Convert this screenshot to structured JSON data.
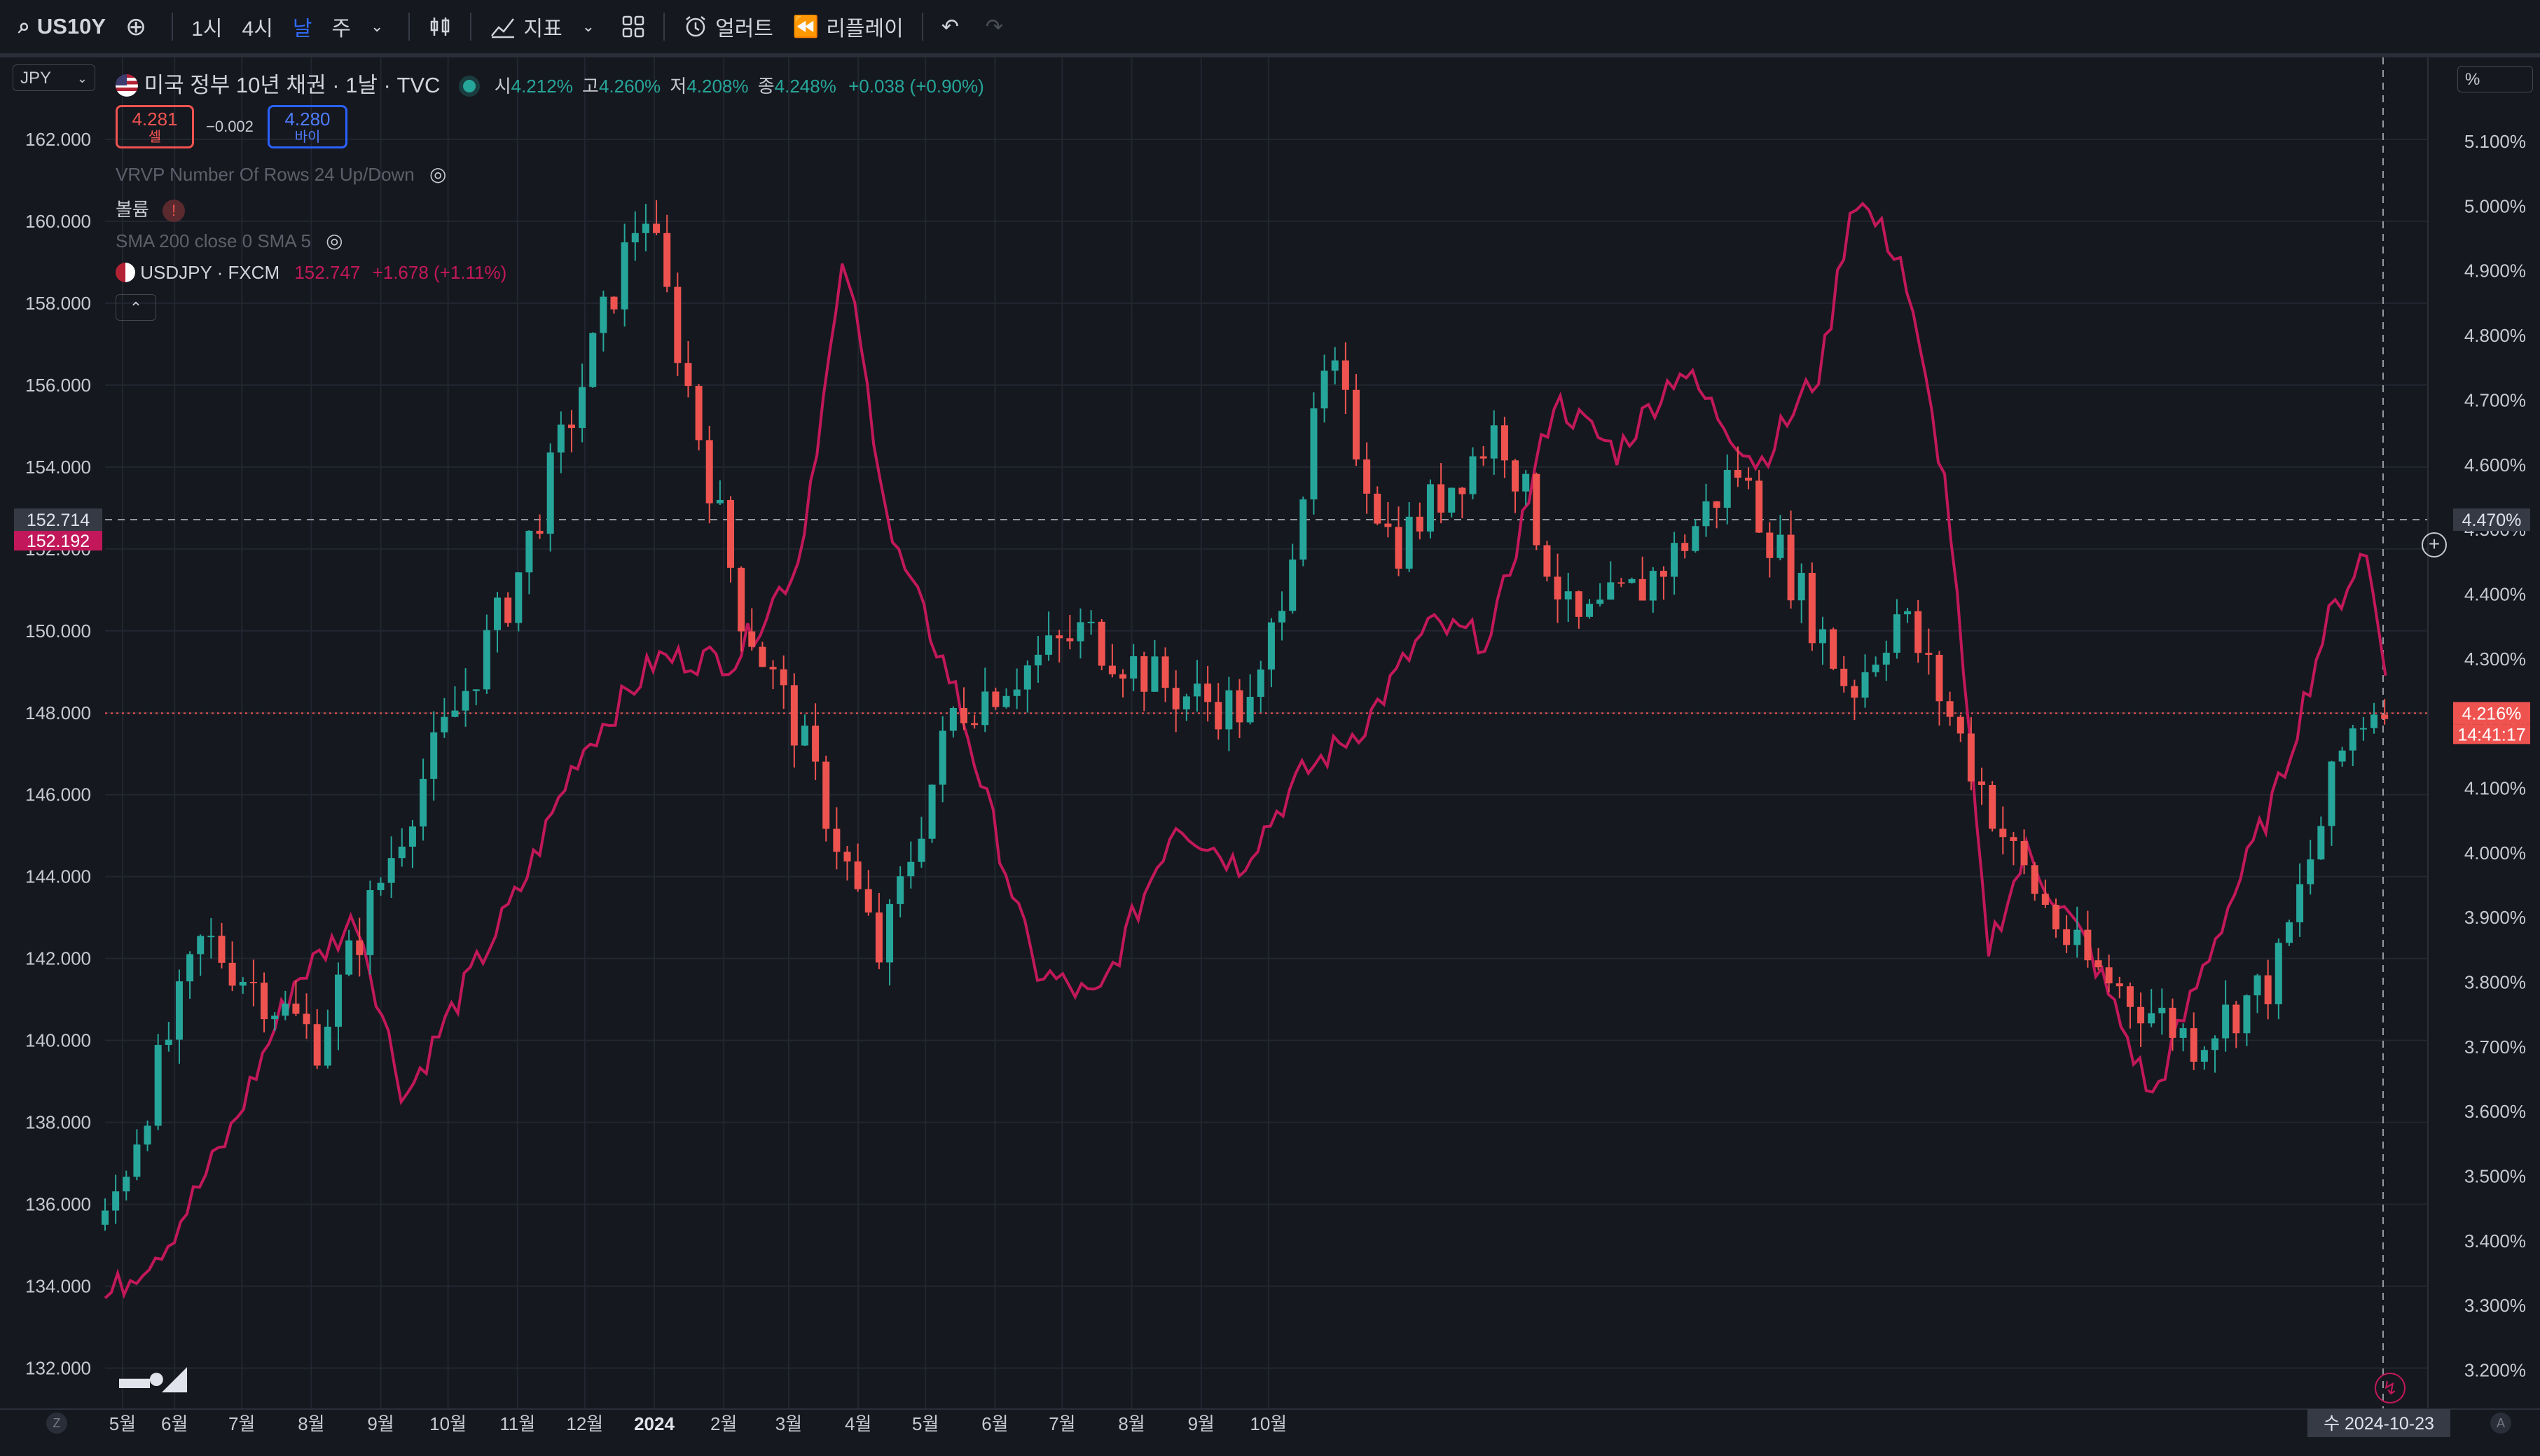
{
  "toolbar": {
    "symbol": "US10Y",
    "intervals": [
      "1시",
      "4시",
      "날",
      "주"
    ],
    "active_interval": "날",
    "indicators_label": "지표",
    "alert_label": "얼러트",
    "replay_label": "리플레이",
    "icons": [
      "search-icon",
      "add-symbol-icon",
      "chevron-down-icon",
      "candles-icon",
      "indicators-icon",
      "layout-icon",
      "alarm-icon",
      "replay-icon",
      "undo-icon",
      "redo-icon"
    ]
  },
  "currency_select": "JPY",
  "pct_select": "%",
  "legend": {
    "title": "미국 정부 10년 채권 · 1날 · TVC",
    "o_label": "시",
    "o": "4.212%",
    "h_label": "고",
    "h": "4.260%",
    "l_label": "저",
    "l": "4.208%",
    "c_label": "종",
    "c": "4.248%",
    "change": "+0.038 (+0.90%)",
    "sell_price": "4.281",
    "sell_label": "셀",
    "spread": "−0.002",
    "buy_price": "4.280",
    "buy_label": "바이",
    "vrvp": "VRVP Number Of Rows 24 Up/Down",
    "volume": "볼륨",
    "sma": "SMA 200 close 0 SMA 5",
    "compare_name": "USDJPY · FXCM",
    "compare_price": "152.747",
    "compare_change": "+1.678 (+1.11%)"
  },
  "colors": {
    "background": "#16181f",
    "up": "#26a69a",
    "down": "#ef5350",
    "compare": "#c2185b",
    "accent": "#2962ff"
  },
  "chart_data": {
    "type": "candlestick + line",
    "series": [
      {
        "name": "USDJPY · FXCM",
        "type": "candlestick",
        "axis": "left",
        "values": [
          {
            "month": "2023-05",
            "open": 136.5,
            "close": 137.8
          },
          {
            "month": "2023-06",
            "open": 137.8,
            "close": 143.5
          },
          {
            "month": "2023-07",
            "open": 143.5,
            "close": 142.3
          },
          {
            "month": "2023-08",
            "open": 142.3,
            "close": 145.5
          },
          {
            "month": "2023-09",
            "open": 145.5,
            "close": 149.3
          },
          {
            "month": "2023-10",
            "open": 149.3,
            "close": 151.5
          },
          {
            "month": "2023-11",
            "open": 151.5,
            "close": 148.2
          },
          {
            "month": "2023-12",
            "open": 148.2,
            "close": 141.0
          },
          {
            "month": "2024-01",
            "open": 141.0,
            "close": 147.2
          },
          {
            "month": "2024-02",
            "open": 147.2,
            "close": 150.0
          },
          {
            "month": "2024-03",
            "open": 150.0,
            "close": 151.3
          },
          {
            "month": "2024-04",
            "open": 151.3,
            "close": 157.7
          },
          {
            "month": "2024-05",
            "open": 157.7,
            "close": 157.3
          },
          {
            "month": "2024-06",
            "open": 157.3,
            "close": 160.9
          },
          {
            "month": "2024-07",
            "open": 160.9,
            "close": 150.0
          },
          {
            "month": "2024-08",
            "open": 150.0,
            "close": 146.2
          },
          {
            "month": "2024-09",
            "open": 146.2,
            "close": 143.6
          },
          {
            "month": "2024-10",
            "open": 143.6,
            "close": 152.7
          }
        ],
        "approx_path": [
          [
            0,
            135.5
          ],
          [
            60,
            142.5
          ],
          [
            130,
            140
          ],
          [
            190,
            146
          ],
          [
            250,
            151
          ],
          [
            330,
            160.5
          ],
          [
            390,
            150.5
          ],
          [
            425,
            147.5
          ],
          [
            475,
            142
          ],
          [
            520,
            148
          ],
          [
            600,
            150
          ],
          [
            655,
            148.5
          ],
          [
            705,
            148
          ],
          [
            750,
            156.5
          ],
          [
            790,
            152
          ],
          [
            855,
            155
          ],
          [
            900,
            150
          ],
          [
            940,
            151
          ],
          [
            965,
            152
          ],
          [
            1000,
            154
          ],
          [
            1070,
            148.5
          ],
          [
            1100,
            150.5
          ],
          [
            1130,
            148
          ],
          [
            1170,
            144.5
          ],
          [
            1210,
            142
          ],
          [
            1280,
            140
          ],
          [
            1330,
            141.5
          ],
          [
            1375,
            147.5
          ],
          [
            1400,
            148.6
          ]
        ]
      },
      {
        "name": "미국 정부 10년 채권",
        "type": "line",
        "axis": "right",
        "approx_path": [
          [
            0,
            3.31
          ],
          [
            40,
            3.4
          ],
          [
            80,
            3.57
          ],
          [
            120,
            3.8
          ],
          [
            160,
            3.9
          ],
          [
            190,
            3.62
          ],
          [
            230,
            3.8
          ],
          [
            265,
            3.95
          ],
          [
            300,
            4.15
          ],
          [
            350,
            4.3
          ],
          [
            400,
            4.3
          ],
          [
            440,
            4.45
          ],
          [
            470,
            4.92
          ],
          [
            500,
            4.48
          ],
          [
            540,
            4.25
          ],
          [
            590,
            3.82
          ],
          [
            630,
            3.77
          ],
          [
            680,
            4.05
          ],
          [
            720,
            3.98
          ],
          [
            760,
            4.12
          ],
          [
            800,
            4.2
          ],
          [
            840,
            4.35
          ],
          [
            880,
            4.33
          ],
          [
            920,
            4.7
          ],
          [
            960,
            4.62
          ],
          [
            1000,
            4.75
          ],
          [
            1050,
            4.6
          ],
          [
            1090,
            4.75
          ],
          [
            1110,
            5.02
          ],
          [
            1140,
            4.92
          ],
          [
            1170,
            4.55
          ],
          [
            1195,
            3.85
          ],
          [
            1220,
            4.0
          ],
          [
            1260,
            3.85
          ],
          [
            1300,
            3.62
          ],
          [
            1340,
            3.87
          ],
          [
            1380,
            4.1
          ],
          [
            1410,
            4.35
          ],
          [
            1435,
            4.47
          ],
          [
            1450,
            4.27
          ]
        ]
      }
    ],
    "x_tick_labels": [
      "5월",
      "6월",
      "7월",
      "8월",
      "9월",
      "10월",
      "11월",
      "12월",
      "2024",
      "2월",
      "3월",
      "4월",
      "5월",
      "6월",
      "7월",
      "8월",
      "9월",
      "10월"
    ],
    "left_axis": {
      "unit": "JPY",
      "ylim": [
        131,
        164
      ],
      "ticks": [
        "132.000",
        "134.000",
        "136.000",
        "138.000",
        "140.000",
        "142.000",
        "144.000",
        "146.000",
        "148.000",
        "150.000",
        "152.000",
        "154.000",
        "156.000",
        "158.000",
        "160.000",
        "162.000"
      ]
    },
    "right_axis": {
      "unit": "%",
      "ylim": [
        3.14,
        5.23
      ],
      "ticks": [
        "3.200%",
        "3.300%",
        "3.400%",
        "3.500%",
        "3.600%",
        "3.700%",
        "3.800%",
        "3.900%",
        "4.000%",
        "4.100%",
        "4.200%",
        "4.300%",
        "4.400%",
        "4.500%",
        "4.600%",
        "4.700%",
        "4.800%",
        "4.900%",
        "5.000%",
        "5.100%"
      ]
    },
    "labels": {
      "crosshair_left": "152.714",
      "current_left": "152.192",
      "crosshair_right": "4.470%",
      "current_right": "4.216%",
      "countdown": "14:41:17",
      "crosshair_date": "수 2024-10-23"
    },
    "grid": true,
    "watermark": "TV"
  }
}
